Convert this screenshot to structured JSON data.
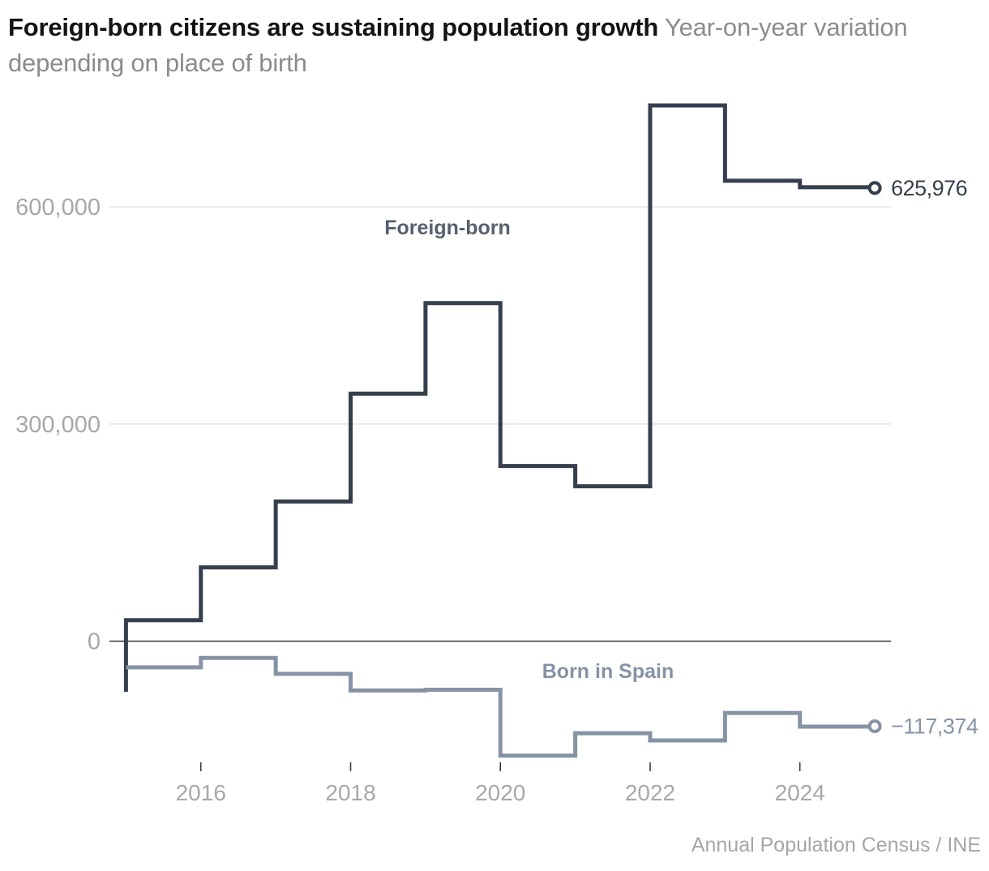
{
  "title": "Foreign-born citizens are sustaining population growth",
  "subtitle": "Year-on-year variation depending on place of birth",
  "source": "Annual Population Census / INE",
  "colors": {
    "foreign": "#363f4d",
    "spain": "#8693a5",
    "foreign_label": "#56606e",
    "axis_text": "#a8a8a8",
    "grid": "#e3e3e3",
    "zero_line": "#333333"
  },
  "chart_data": {
    "type": "line",
    "step": "post",
    "y_ticks": [
      0,
      300000,
      600000
    ],
    "y_tick_labels": [
      "0",
      "300,000",
      "600,000"
    ],
    "x_ticks": [
      2016,
      2018,
      2020,
      2022,
      2024
    ],
    "x_tick_labels": [
      "2016",
      "2018",
      "2020",
      "2022",
      "2024"
    ],
    "xlim": [
      2014.95,
      2026.2
    ],
    "ylim": [
      -165000,
      740000
    ],
    "series": [
      {
        "name": "Foreign-born",
        "key": "foreign",
        "label": "Foreign-born",
        "end_label": "625,976",
        "start_value": -70000,
        "x": [
          2015,
          2016,
          2017,
          2018,
          2019,
          2020,
          2021,
          2022,
          2023,
          2024,
          2025
        ],
        "values": [
          29000,
          102000,
          193000,
          342000,
          467000,
          242000,
          214000,
          740000,
          636000,
          627000,
          625976
        ]
      },
      {
        "name": "Born in Spain",
        "key": "spain",
        "label": "Born in Spain",
        "end_label": "−117,374",
        "x": [
          2015,
          2016,
          2017,
          2018,
          2019,
          2020,
          2021,
          2022,
          2023,
          2024,
          2025
        ],
        "values": [
          -36000,
          -23000,
          -45000,
          -68000,
          -67000,
          -158000,
          -127000,
          -137000,
          -99000,
          -118000,
          -117374
        ]
      }
    ]
  }
}
